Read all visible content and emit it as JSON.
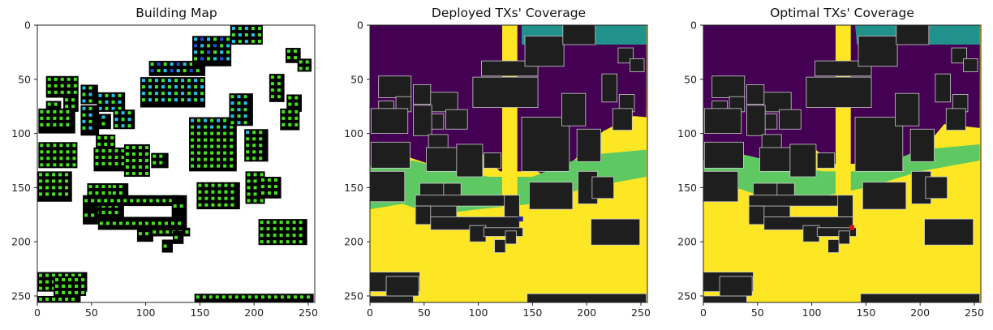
{
  "chart_data": [
    {
      "type": "heatmap",
      "title": "Building Map",
      "x_ticks": [
        0,
        50,
        100,
        150,
        200,
        250
      ],
      "y_ticks": [
        0,
        50,
        100,
        150,
        200,
        250
      ],
      "xlim": [
        0,
        255
      ],
      "ylim": [
        255,
        0
      ],
      "colors": {
        "background": "#ffffff",
        "building": "#000000",
        "green_marker": "#44e41c",
        "cyan_marker": "#22c3e8",
        "blue_marker": "#1f4fd6"
      }
    },
    {
      "type": "heatmap",
      "title": "Deployed TXs' Coverage",
      "x_ticks": [
        0,
        50,
        100,
        150,
        200,
        250
      ],
      "y_ticks": [
        0,
        50,
        100,
        150,
        200,
        250
      ],
      "xlim": [
        0,
        255
      ],
      "ylim": [
        255,
        0
      ],
      "tx_location": [
        139,
        179
      ],
      "tx_color": "#1f1fa0",
      "colors": {
        "low": "#440154",
        "mid_low": "#21918c",
        "mid_high": "#5ec962",
        "high": "#fde725",
        "building": "#1e1e1e"
      }
    },
    {
      "type": "heatmap",
      "title": "Optimal TXs' Coverage",
      "x_ticks": [
        0,
        50,
        100,
        150,
        200,
        250
      ],
      "y_ticks": [
        0,
        50,
        100,
        150,
        200,
        250
      ],
      "xlim": [
        0,
        255
      ],
      "ylim": [
        255,
        0
      ],
      "tx_location": [
        137,
        187
      ],
      "tx_color": "#e01010",
      "colors": {
        "low": "#440154",
        "mid_low": "#21918c",
        "mid_high": "#5ec962",
        "high": "#fde725",
        "building": "#1e1e1e"
      }
    }
  ]
}
